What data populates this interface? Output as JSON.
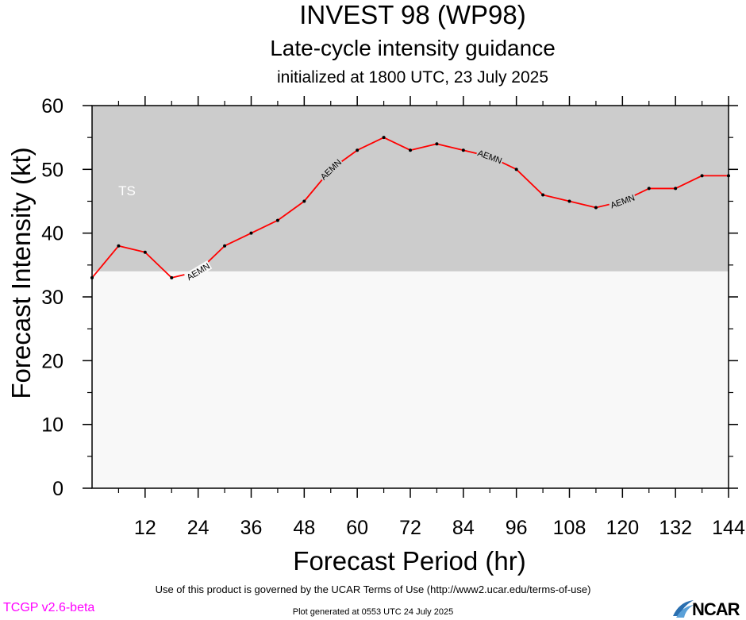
{
  "chart_data": {
    "type": "line",
    "title": "INVEST 98 (WP98)",
    "subtitle": "Late-cycle intensity guidance",
    "subtitle2": "initialized at 1800 UTC, 23 July 2025",
    "xlabel": "Forecast Period (hr)",
    "ylabel": "Forecast Intensity (kt)",
    "xlim": [
      0,
      144
    ],
    "ylim": [
      0,
      60
    ],
    "xticks": [
      12,
      24,
      36,
      48,
      60,
      72,
      84,
      96,
      108,
      120,
      132,
      144
    ],
    "yticks": [
      0,
      10,
      20,
      30,
      40,
      50,
      60
    ],
    "bands": [
      {
        "label": "TS",
        "from": 34,
        "to": 60,
        "color": "#cccccc"
      },
      {
        "label": "",
        "from": 0,
        "to": 34,
        "color": "#f8f8f8"
      }
    ],
    "series": [
      {
        "name": "AEMN",
        "color": "#ff0000",
        "x": [
          0,
          6,
          12,
          18,
          24,
          30,
          36,
          42,
          48,
          54,
          60,
          66,
          72,
          78,
          84,
          90,
          96,
          102,
          108,
          114,
          120,
          126,
          132,
          138,
          144
        ],
        "y": [
          33,
          38,
          37,
          33,
          34,
          38,
          40,
          42,
          45,
          50,
          53,
          55,
          53,
          54,
          53,
          52,
          50,
          46,
          45,
          44,
          45,
          47,
          47,
          49,
          49
        ],
        "label_at_x": [
          24,
          54,
          90,
          120
        ]
      }
    ]
  },
  "footer": {
    "terms": "Use of this product is governed by the UCAR Terms of Use (http://www2.ucar.edu/terms-of-use)",
    "version": "TCGP v2.6-beta",
    "version_color": "#ff00ff",
    "generated": "Plot generated at 0553 UTC   24 July 2025",
    "logo": "NCAR"
  }
}
